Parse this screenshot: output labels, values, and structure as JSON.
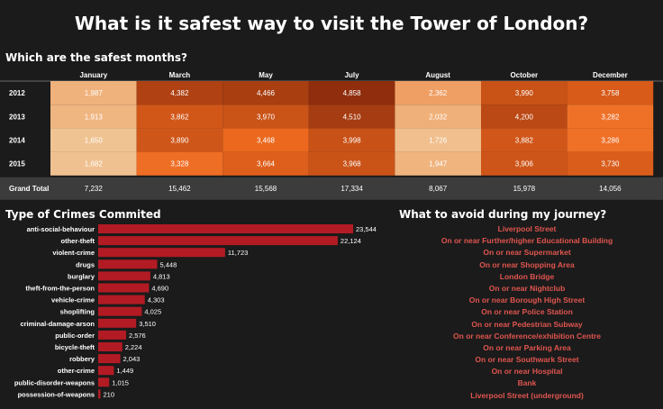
{
  "title": "What is it safest way to visit the Tower of London?",
  "heatmap_title": "Which are the safest months?",
  "bar_title": "Type of Crimes Commited",
  "avoid_title": "What to avoid during my journey?",
  "colors": {
    "background": "#1b1b1b",
    "bar": "#b31b24",
    "avoid_text": "#e0554f",
    "heat_low": "#f0c392",
    "heat_mid": "#ef6a1f",
    "heat_high": "#8f2d0c"
  },
  "chart_data": [
    {
      "type": "heatmap",
      "title": "Which are the safest months?",
      "columns": [
        "January",
        "March",
        "May",
        "July",
        "August",
        "October",
        "December"
      ],
      "rows": [
        "2012",
        "2013",
        "2014",
        "2015"
      ],
      "values": [
        [
          1987,
          4382,
          4466,
          4858,
          2362,
          3990,
          3758
        ],
        [
          1913,
          3862,
          3970,
          4510,
          2032,
          4200,
          3282
        ],
        [
          1650,
          3890,
          3468,
          3998,
          1726,
          3882,
          3286
        ],
        [
          1682,
          3328,
          3664,
          3968,
          1947,
          3906,
          3730
        ]
      ],
      "display_values": [
        [
          "1,987",
          "4,382",
          "4,466",
          "4,858",
          "2,362",
          "3,990",
          "3,758"
        ],
        [
          "1,913",
          "3,862",
          "3,970",
          "4,510",
          "2,032",
          "4,200",
          "3,282"
        ],
        [
          "1,650",
          "3,890",
          "3,468",
          "3,998",
          "1,726",
          "3,882",
          "3,286"
        ],
        [
          "1,682",
          "3,328",
          "3,664",
          "3,968",
          "1,947",
          "3,906",
          "3,730"
        ]
      ],
      "total_label": "Grand Total",
      "totals": [
        7232,
        15462,
        15568,
        17334,
        8067,
        15978,
        14056
      ],
      "display_totals": [
        "7,232",
        "15,462",
        "15,568",
        "17,334",
        "8,067",
        "15,978",
        "14,056"
      ]
    },
    {
      "type": "bar",
      "orientation": "horizontal",
      "title": "Type of Crimes Commited",
      "categories": [
        "anti-social-behaviour",
        "other-theft",
        "violent-crime",
        "drugs",
        "burglary",
        "theft-from-the-person",
        "vehicle-crime",
        "shoplifting",
        "criminal-damage-arson",
        "public-order",
        "bicycle-theft",
        "robbery",
        "other-crime",
        "public-disorder-weapons",
        "possession-of-weapons"
      ],
      "values": [
        23544,
        22124,
        11723,
        5448,
        4813,
        4690,
        4303,
        4025,
        3510,
        2576,
        2224,
        2043,
        1449,
        1015,
        210
      ],
      "display_values": [
        "23,544",
        "22,124",
        "11,723",
        "5,448",
        "4,813",
        "4,690",
        "4,303",
        "4,025",
        "3,510",
        "2,576",
        "2,224",
        "2,043",
        "1,449",
        "1,015",
        "210"
      ],
      "xlim": [
        0,
        23544
      ]
    }
  ],
  "avoid_items": [
    "Liverpool Street",
    "On or near Further/higher Educational Building",
    "On or near Supermarket",
    "On or near Shopping Area",
    "London Bridge",
    "On or near Nightclub",
    "On or near Borough High Street",
    "On or near Police Station",
    "On or near Pedestrian Subway",
    "On or near Conference/exhibition Centre",
    "On or near Parking Area",
    "On or near Southwark Street",
    "On or near Hospital",
    "Bank",
    "Liverpool Street (underground)"
  ]
}
